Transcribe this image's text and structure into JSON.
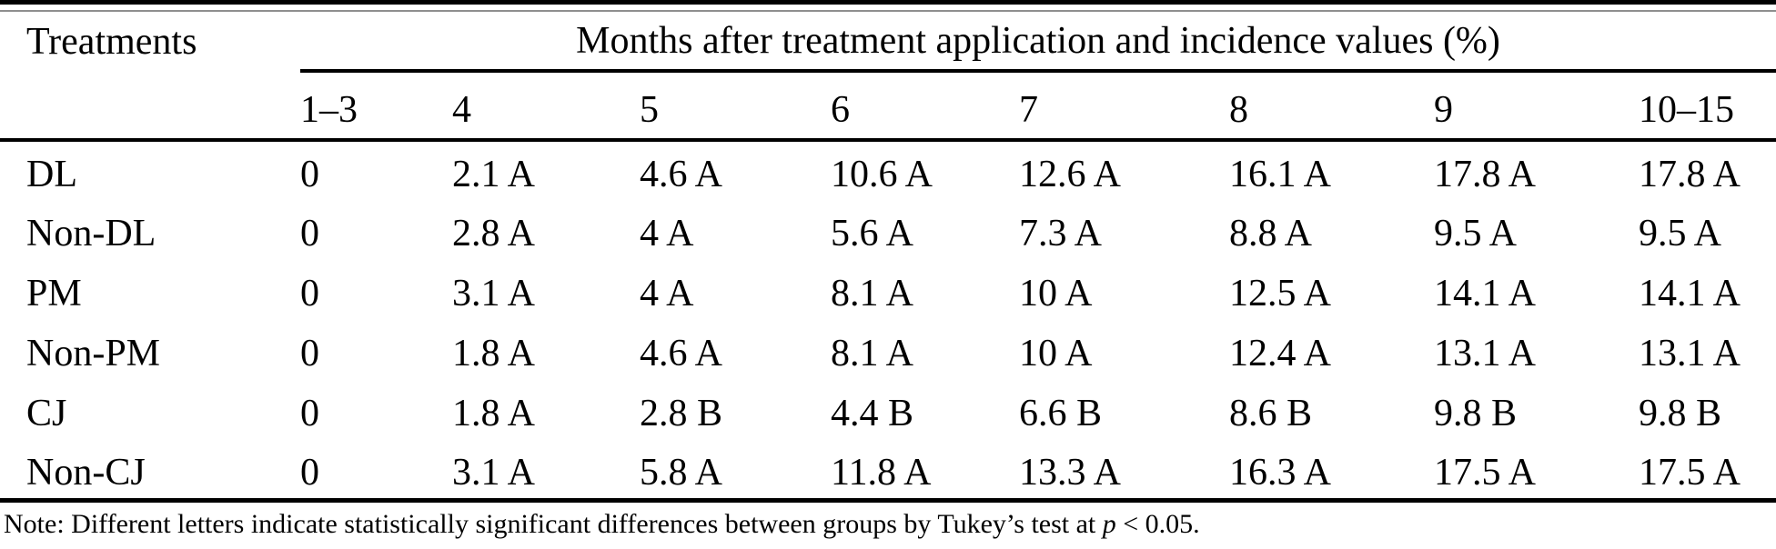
{
  "table": {
    "corner_header": "Treatments",
    "group_header": "Months after treatment application and incidence values (%)",
    "month_columns": [
      "1–3",
      "4",
      "5",
      "6",
      "7",
      "8",
      "9",
      "10–15"
    ],
    "rows": [
      {
        "treatment": "DL",
        "values": [
          "0",
          "2.1 A",
          "4.6 A",
          "10.6 A",
          "12.6 A",
          "16.1 A",
          "17.8 A",
          "17.8 A"
        ]
      },
      {
        "treatment": "Non-DL",
        "values": [
          "0",
          "2.8 A",
          "4 A",
          "5.6 A",
          "7.3 A",
          "8.8 A",
          "9.5 A",
          "9.5 A"
        ]
      },
      {
        "treatment": "PM",
        "values": [
          "0",
          "3.1 A",
          "4 A",
          "8.1 A",
          "10 A",
          "12.5 A",
          "14.1 A",
          "14.1 A"
        ]
      },
      {
        "treatment": "Non-PM",
        "values": [
          "0",
          "1.8 A",
          "4.6 A",
          "8.1 A",
          "10 A",
          "12.4 A",
          "13.1 A",
          "13.1 A"
        ]
      },
      {
        "treatment": "CJ",
        "values": [
          "0",
          "1.8 A",
          "2.8 B",
          "4.4 B",
          "6.6 B",
          "8.6 B",
          "9.8 B",
          "9.8 B"
        ]
      },
      {
        "treatment": "Non-CJ",
        "values": [
          "0",
          "3.1 A",
          "5.8 A",
          "11.8 A",
          "13.3 A",
          "16.3 A",
          "17.5 A",
          "17.5 A"
        ]
      }
    ]
  },
  "note": {
    "prefix": "Note: Different letters indicate statistically significant differences between groups by Tukey’s test at ",
    "p_symbol": "p",
    "suffix": " < 0.05."
  },
  "colors": {
    "background": "#ffffff",
    "text": "#000000",
    "rule": "#000000"
  }
}
